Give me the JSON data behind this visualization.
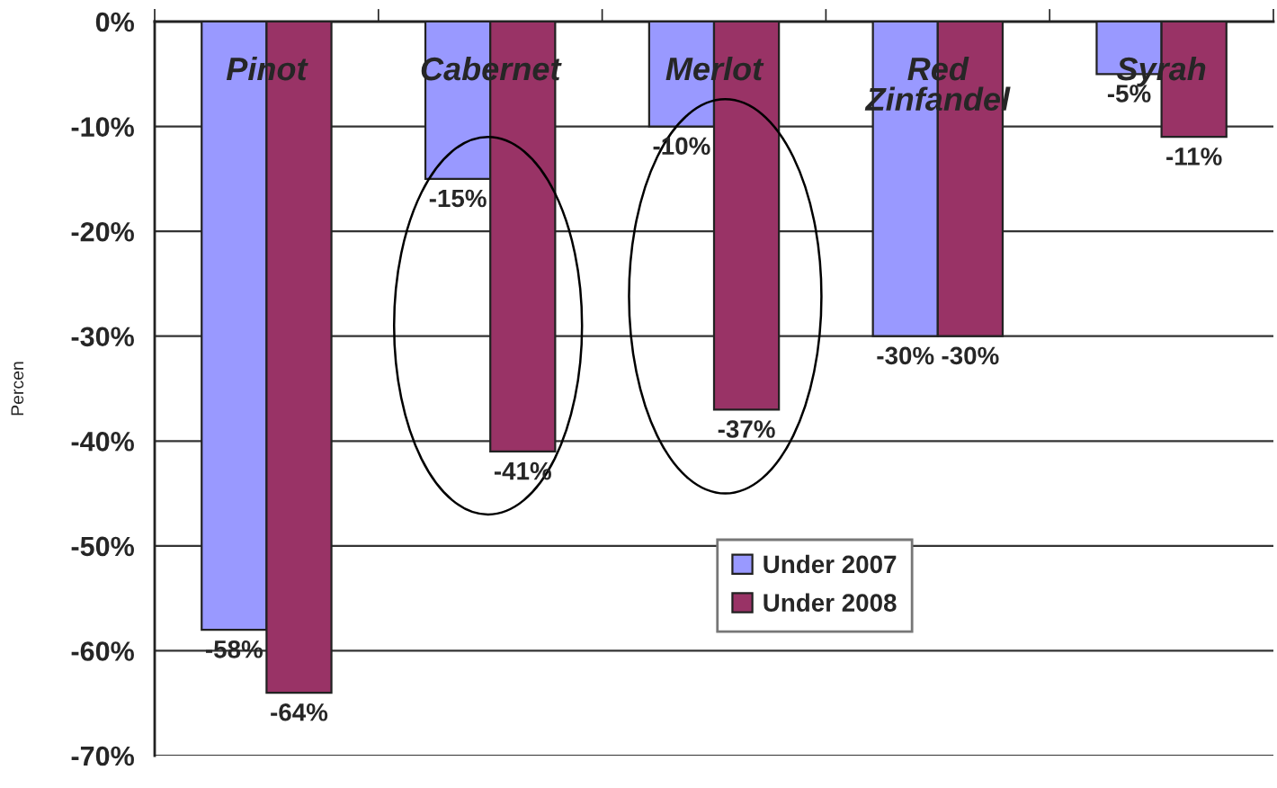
{
  "chart_data": {
    "type": "bar",
    "ylabel": "Percen",
    "categories": [
      "Pinot",
      "Cabernet",
      "Merlot",
      "Red\nZinfandel",
      "Syrah"
    ],
    "series": [
      {
        "name": "Under 2007",
        "color": "#9999ff",
        "values": [
          -58,
          -15,
          -10,
          -30,
          -5
        ],
        "value_labels": [
          "-58%",
          "-15%",
          "-10%",
          "-30%",
          "-5%"
        ]
      },
      {
        "name": "Under 2008",
        "color": "#993366",
        "values": [
          -64,
          -41,
          -37,
          -30,
          -11
        ],
        "value_labels": [
          "-64%",
          "-41%",
          "-37%",
          "-30%",
          "-11%"
        ]
      }
    ],
    "ylim": [
      -70,
      0
    ],
    "yticks": [
      {
        "value": 0,
        "label": "0%"
      },
      {
        "value": -10,
        "label": "-10%"
      },
      {
        "value": -20,
        "label": "-20%"
      },
      {
        "value": -30,
        "label": "-30%"
      },
      {
        "value": -40,
        "label": "-40%"
      },
      {
        "value": -50,
        "label": "-50%"
      },
      {
        "value": -60,
        "label": "-60%"
      },
      {
        "value": -70,
        "label": "-70%"
      }
    ],
    "grid": "y",
    "legend": "bottom"
  }
}
